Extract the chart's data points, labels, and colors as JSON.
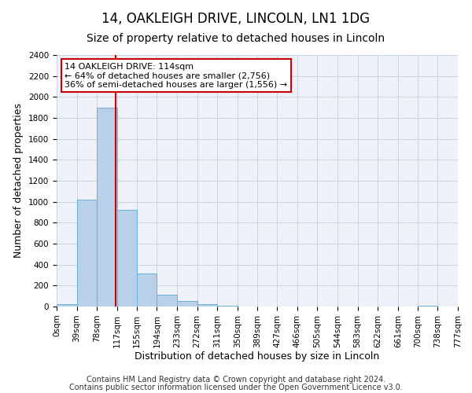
{
  "title": "14, OAKLEIGH DRIVE, LINCOLN, LN1 1DG",
  "subtitle": "Size of property relative to detached houses in Lincoln",
  "xlabel": "Distribution of detached houses by size in Lincoln",
  "ylabel": "Number of detached properties",
  "bin_edges": [
    0,
    39,
    78,
    117,
    155,
    194,
    233,
    272,
    311,
    350,
    389,
    427,
    466,
    505,
    544,
    583,
    622,
    661,
    700,
    738,
    777
  ],
  "bin_labels": [
    "0sqm",
    "39sqm",
    "78sqm",
    "117sqm",
    "155sqm",
    "194sqm",
    "233sqm",
    "272sqm",
    "311sqm",
    "350sqm",
    "389sqm",
    "427sqm",
    "466sqm",
    "505sqm",
    "544sqm",
    "583sqm",
    "622sqm",
    "661sqm",
    "700sqm",
    "738sqm",
    "777sqm"
  ],
  "counts": [
    20,
    1020,
    1900,
    920,
    315,
    110,
    50,
    20,
    5,
    0,
    0,
    0,
    0,
    0,
    0,
    0,
    0,
    0,
    5,
    0
  ],
  "bar_color": "#b8d0e8",
  "bar_edge_color": "#6aaed6",
  "property_size": 114,
  "vline_color": "#cc0000",
  "annotation_line1": "14 OAKLEIGH DRIVE: 114sqm",
  "annotation_line2": "← 64% of detached houses are smaller (2,756)",
  "annotation_line3": "36% of semi-detached houses are larger (1,556) →",
  "annotation_box_edge": "#cc0000",
  "ylim": [
    0,
    2400
  ],
  "yticks": [
    0,
    200,
    400,
    600,
    800,
    1000,
    1200,
    1400,
    1600,
    1800,
    2000,
    2200,
    2400
  ],
  "footer1": "Contains HM Land Registry data © Crown copyright and database right 2024.",
  "footer2": "Contains public sector information licensed under the Open Government Licence v3.0.",
  "background_color": "#ffffff",
  "plot_bg_color": "#eef2f8",
  "grid_color": "#c8d4e4",
  "title_fontsize": 12,
  "subtitle_fontsize": 10,
  "axis_label_fontsize": 9,
  "tick_fontsize": 7.5,
  "annotation_fontsize": 8,
  "footer_fontsize": 7
}
